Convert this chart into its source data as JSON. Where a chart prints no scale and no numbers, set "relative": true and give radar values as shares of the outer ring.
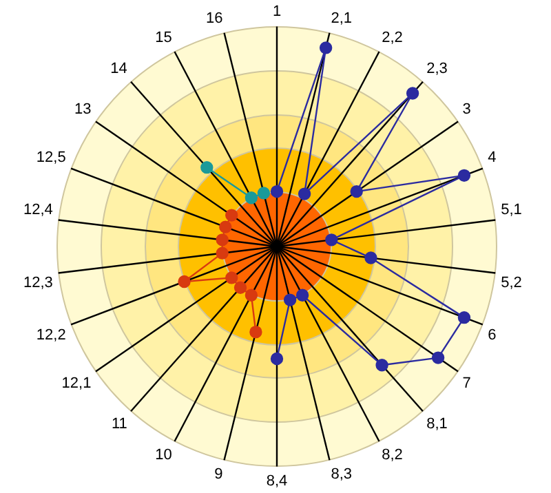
{
  "chart_data": {
    "type": "radar",
    "relative": true,
    "grid": false,
    "legend": false,
    "marker": "circle",
    "categories": [
      "1",
      "2,1",
      "2,2",
      "2,3",
      "3",
      "4",
      "5,1",
      "5,2",
      "6",
      "7",
      "8,1",
      "8,2",
      "8,3",
      "8,4",
      "9",
      "10",
      "11",
      "12,1",
      "12,2",
      "12,3",
      "12,4",
      "12,5",
      "13",
      "14",
      "15",
      "16"
    ],
    "series": [
      {
        "color": "#2b2ba0",
        "values": [
          0.25,
          0.93,
          0.27,
          0.93,
          0.44,
          0.91,
          0.25,
          0.43,
          0.91,
          0.89,
          0.72,
          0.25,
          0.25,
          0.51,
          null,
          null,
          null,
          null,
          null,
          null,
          null,
          null,
          null,
          null,
          null,
          null
        ]
      },
      {
        "color": "#d83a10",
        "values": [
          null,
          null,
          null,
          null,
          null,
          null,
          null,
          null,
          null,
          null,
          null,
          null,
          null,
          null,
          0.4,
          0.25,
          0.25,
          0.25,
          0.45,
          0.25,
          0.25,
          0.25,
          0.25,
          null,
          null,
          null
        ]
      },
      {
        "color": "#1a9a9a",
        "values": [
          null,
          null,
          null,
          null,
          null,
          null,
          null,
          null,
          null,
          null,
          null,
          null,
          null,
          null,
          null,
          null,
          null,
          null,
          null,
          null,
          null,
          null,
          null,
          0.48,
          0.25,
          0.25
        ]
      }
    ]
  }
}
